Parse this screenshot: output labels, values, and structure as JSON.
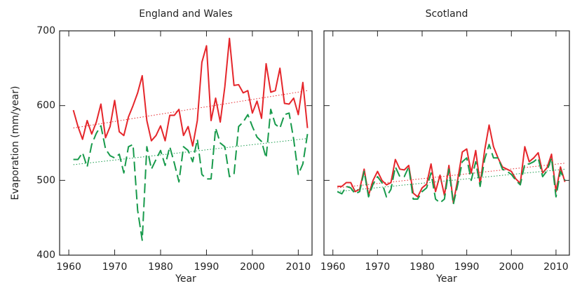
{
  "chart_data": [
    {
      "type": "line",
      "title": "England and Wales",
      "xlabel": "Year",
      "ylabel": "Evaporation (mm/year)",
      "xlim": [
        1958,
        2013
      ],
      "ylim": [
        400,
        700
      ],
      "xticks": [
        1960,
        1970,
        1980,
        1990,
        2000,
        2010
      ],
      "yticks": [
        400,
        500,
        600,
        700
      ],
      "x": [
        1961,
        1962,
        1963,
        1964,
        1965,
        1966,
        1967,
        1968,
        1969,
        1970,
        1971,
        1972,
        1973,
        1974,
        1975,
        1976,
        1977,
        1978,
        1979,
        1980,
        1981,
        1982,
        1983,
        1984,
        1985,
        1986,
        1987,
        1988,
        1989,
        1990,
        1991,
        1992,
        1993,
        1994,
        1995,
        1996,
        1997,
        1998,
        1999,
        2000,
        2001,
        2002,
        2003,
        2004,
        2005,
        2006,
        2007,
        2008,
        2009,
        2010,
        2011,
        2012
      ],
      "series": [
        {
          "color": "#e5262b",
          "style": "solid",
          "values": [
            594,
            572,
            555,
            580,
            562,
            578,
            602,
            557,
            572,
            607,
            565,
            560,
            585,
            600,
            617,
            640,
            580,
            553,
            560,
            573,
            553,
            587,
            587,
            595,
            560,
            572,
            546,
            580,
            658,
            680,
            580,
            610,
            578,
            625,
            690,
            627,
            628,
            617,
            620,
            590,
            606,
            583,
            656,
            618,
            620,
            650,
            603,
            602,
            610,
            588,
            631,
            570
          ],
          "trend": {
            "x": [
              1961,
              2012
            ],
            "values": [
              570,
              620
            ]
          }
        },
        {
          "color": "#179a4b",
          "style": "dashed",
          "values": [
            528,
            528,
            537,
            518,
            548,
            563,
            573,
            542,
            533,
            530,
            535,
            510,
            545,
            548,
            460,
            420,
            545,
            515,
            528,
            540,
            520,
            545,
            523,
            498,
            545,
            540,
            525,
            555,
            508,
            502,
            502,
            570,
            550,
            545,
            505,
            508,
            572,
            578,
            588,
            572,
            558,
            552,
            530,
            595,
            575,
            570,
            588,
            590,
            555,
            508,
            522,
            562
          ],
          "trend": {
            "x": [
              1961,
              2012
            ],
            "values": [
              521,
              556
            ]
          }
        }
      ]
    },
    {
      "type": "line",
      "title": "Scotland",
      "xlabel": "Year",
      "xlim": [
        1958,
        2013
      ],
      "ylim": [
        400,
        700
      ],
      "xticks": [
        1960,
        1970,
        1980,
        1990,
        2000,
        2010
      ],
      "yticks": [
        400,
        500,
        600,
        700
      ],
      "x": [
        1961,
        1962,
        1963,
        1964,
        1965,
        1966,
        1967,
        1968,
        1969,
        1970,
        1971,
        1972,
        1973,
        1974,
        1975,
        1976,
        1977,
        1978,
        1979,
        1980,
        1981,
        1982,
        1983,
        1984,
        1985,
        1986,
        1987,
        1988,
        1989,
        1990,
        1991,
        1992,
        1993,
        1994,
        1995,
        1996,
        1997,
        1998,
        1999,
        2000,
        2001,
        2002,
        2003,
        2004,
        2005,
        2006,
        2007,
        2008,
        2009,
        2010,
        2011,
        2012
      ],
      "series": [
        {
          "color": "#e5262b",
          "style": "solid",
          "values": [
            492,
            492,
            497,
            497,
            485,
            488,
            515,
            480,
            500,
            512,
            500,
            494,
            497,
            528,
            515,
            514,
            520,
            483,
            478,
            490,
            495,
            522,
            485,
            507,
            480,
            520,
            470,
            502,
            538,
            542,
            510,
            540,
            495,
            540,
            574,
            545,
            530,
            518,
            515,
            512,
            502,
            496,
            545,
            525,
            530,
            537,
            510,
            517,
            535,
            485,
            518,
            498
          ],
          "trend": {
            "x": [
              1961,
              2012
            ],
            "values": [
              490,
              523
            ]
          }
        },
        {
          "color": "#179a4b",
          "style": "dashed",
          "values": [
            485,
            482,
            492,
            490,
            482,
            485,
            512,
            478,
            495,
            505,
            497,
            478,
            488,
            518,
            505,
            505,
            518,
            475,
            475,
            485,
            490,
            510,
            475,
            470,
            475,
            515,
            468,
            495,
            525,
            530,
            500,
            525,
            492,
            528,
            548,
            530,
            530,
            515,
            512,
            508,
            500,
            494,
            522,
            522,
            525,
            530,
            505,
            513,
            530,
            478,
            512,
            500
          ],
          "trend": {
            "x": [
              1961,
              2012
            ],
            "values": [
              485,
              515
            ]
          }
        }
      ]
    }
  ]
}
